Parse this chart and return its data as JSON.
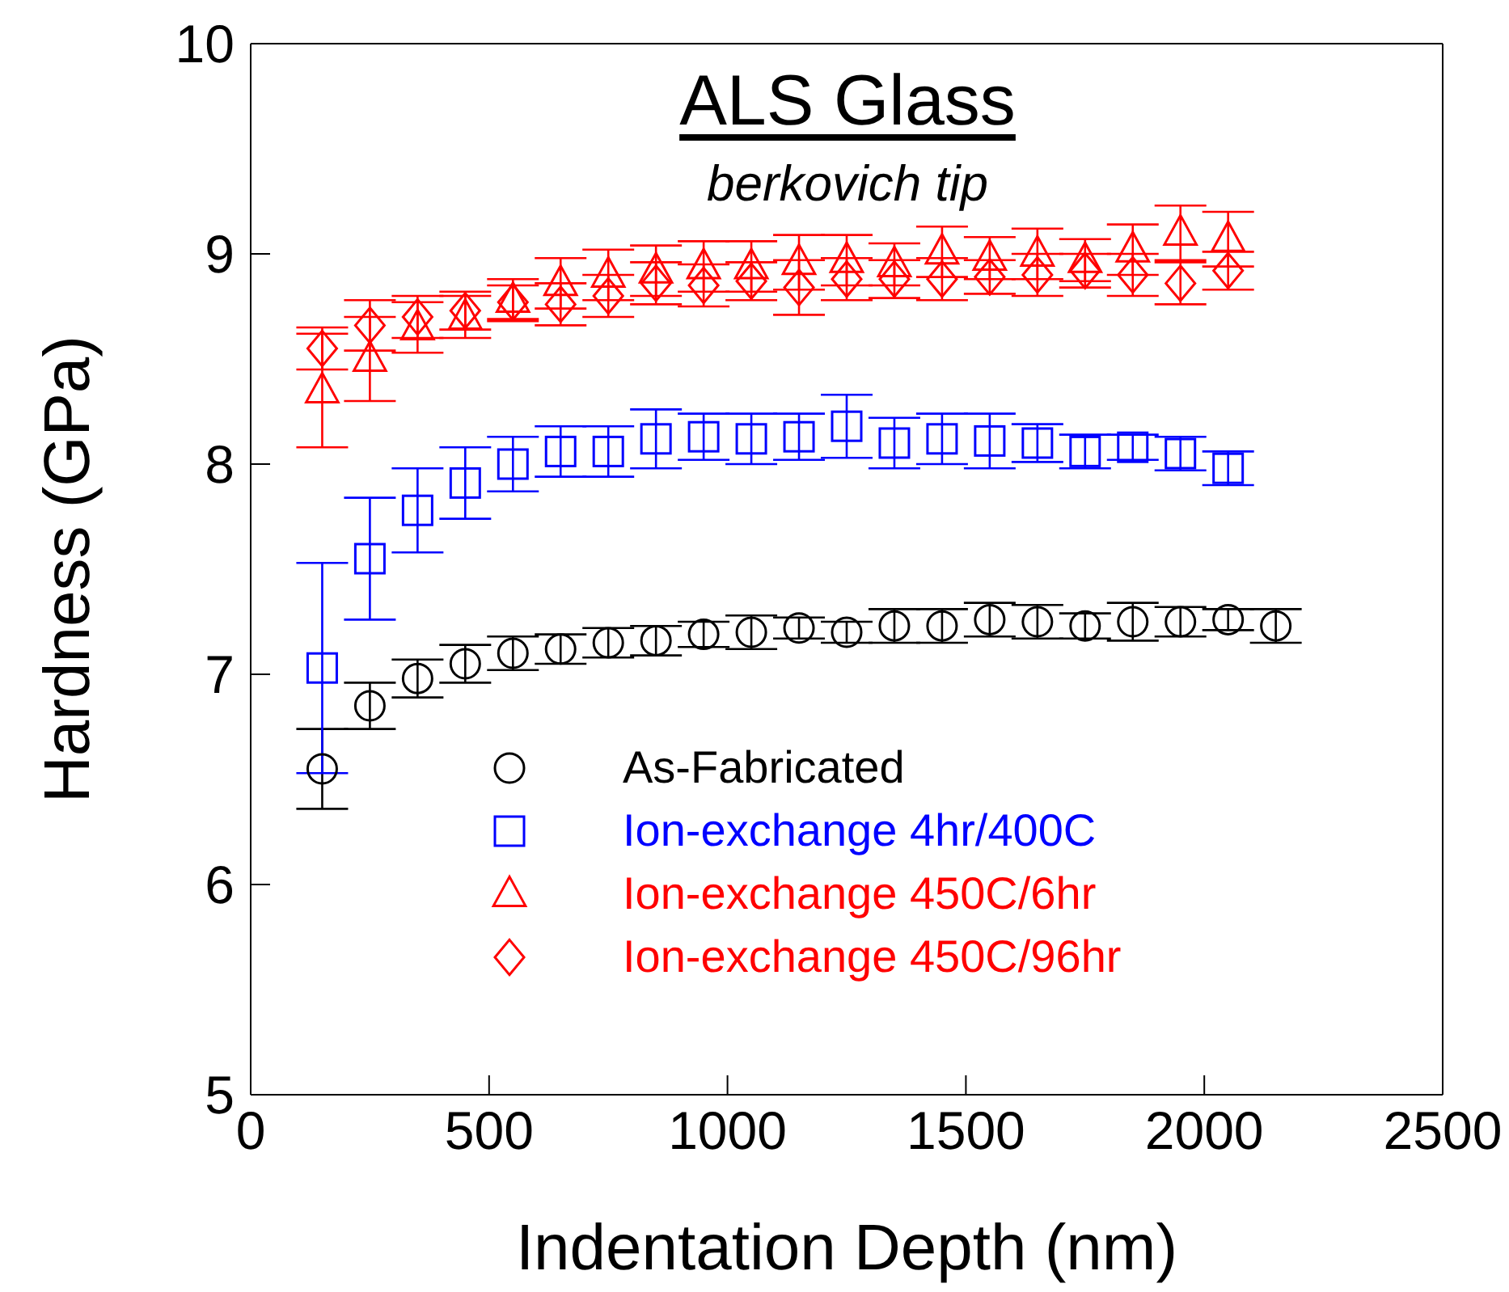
{
  "chart_data": {
    "type": "scatter",
    "title": "ALS Glass",
    "subtitle": "berkovich tip",
    "xlabel": "Indentation Depth (nm)",
    "ylabel": "Hardness (GPa)",
    "xlim": [
      0,
      2500
    ],
    "xticks": [
      0,
      500,
      1000,
      1500,
      2000,
      2500
    ],
    "ylim": [
      5,
      10
    ],
    "yticks": [
      5,
      6,
      7,
      8,
      9,
      10
    ],
    "grid": false,
    "legend": "bottom",
    "series": [
      {
        "name": "As-Fabricated",
        "color": "#000000",
        "marker": "circle",
        "x": [
          150,
          250,
          350,
          450,
          550,
          650,
          750,
          850,
          950,
          1050,
          1150,
          1250,
          1350,
          1450,
          1550,
          1650,
          1750,
          1850,
          1950,
          2050,
          2150
        ],
        "values": [
          6.55,
          6.85,
          6.98,
          7.05,
          7.1,
          7.12,
          7.15,
          7.16,
          7.19,
          7.2,
          7.22,
          7.2,
          7.23,
          7.23,
          7.26,
          7.25,
          7.23,
          7.25,
          7.25,
          7.26,
          7.23
        ],
        "errors": [
          0.19,
          0.11,
          0.09,
          0.09,
          0.08,
          0.07,
          0.07,
          0.07,
          0.06,
          0.08,
          0.05,
          0.05,
          0.08,
          0.08,
          0.08,
          0.08,
          0.06,
          0.09,
          0.07,
          0.05,
          0.08
        ]
      },
      {
        "name": "Ion-exchange 4hr/400C",
        "color": "#0000ff",
        "marker": "square",
        "x": [
          150,
          250,
          350,
          450,
          550,
          650,
          750,
          850,
          950,
          1050,
          1150,
          1250,
          1350,
          1450,
          1550,
          1650,
          1750,
          1850,
          1950,
          2050
        ],
        "values": [
          7.03,
          7.55,
          7.78,
          7.91,
          8.0,
          8.06,
          8.06,
          8.12,
          8.13,
          8.12,
          8.13,
          8.18,
          8.1,
          8.12,
          8.11,
          8.1,
          8.06,
          8.08,
          8.05,
          7.98
        ],
        "errors": [
          0.5,
          0.29,
          0.2,
          0.17,
          0.13,
          0.12,
          0.12,
          0.14,
          0.11,
          0.12,
          0.11,
          0.15,
          0.12,
          0.12,
          0.13,
          0.09,
          0.08,
          0.06,
          0.08,
          0.08
        ]
      },
      {
        "name": "Ion-exchange 450C/6hr",
        "color": "#ff0000",
        "marker": "triangle",
        "x": [
          150,
          250,
          350,
          450,
          550,
          650,
          750,
          850,
          950,
          1050,
          1150,
          1250,
          1350,
          1450,
          1550,
          1650,
          1750,
          1850,
          1950,
          2050
        ],
        "values": [
          8.35,
          8.5,
          8.65,
          8.7,
          8.78,
          8.86,
          8.9,
          8.92,
          8.94,
          8.94,
          8.96,
          8.97,
          8.95,
          9.01,
          8.98,
          9.0,
          8.97,
          9.02,
          9.1,
          9.07
        ],
        "errors": [
          0.27,
          0.2,
          0.12,
          0.1,
          0.1,
          0.12,
          0.12,
          0.12,
          0.12,
          0.12,
          0.13,
          0.12,
          0.1,
          0.12,
          0.1,
          0.12,
          0.1,
          0.12,
          0.13,
          0.13
        ]
      },
      {
        "name": "Ion-exchange 450C/96hr",
        "color": "#ff0000",
        "marker": "diamond",
        "x": [
          150,
          250,
          350,
          450,
          550,
          650,
          750,
          850,
          950,
          1050,
          1150,
          1250,
          1350,
          1450,
          1550,
          1650,
          1750,
          1850,
          1950,
          2050
        ],
        "values": [
          8.55,
          8.66,
          8.7,
          8.73,
          8.77,
          8.76,
          8.8,
          8.86,
          8.85,
          8.87,
          8.84,
          8.88,
          8.88,
          8.88,
          8.89,
          8.9,
          8.92,
          8.9,
          8.86,
          8.92
        ],
        "errors": [
          0.1,
          0.12,
          0.1,
          0.09,
          0.08,
          0.1,
          0.1,
          0.1,
          0.1,
          0.09,
          0.13,
          0.1,
          0.09,
          0.1,
          0.08,
          0.1,
          0.08,
          0.1,
          0.1,
          0.09
        ]
      }
    ]
  }
}
